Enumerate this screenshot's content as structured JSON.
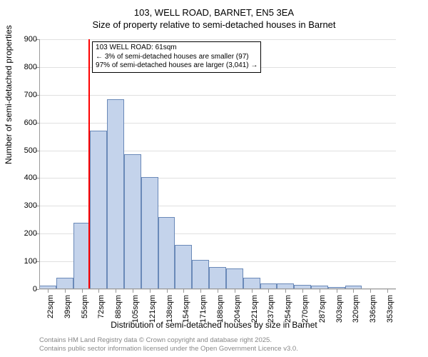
{
  "title": {
    "line1": "103, WELL ROAD, BARNET, EN5 3EA",
    "line2": "Size of property relative to semi-detached houses in Barnet"
  },
  "chart": {
    "type": "histogram",
    "ylabel": "Number of semi-detached properties",
    "xlabel": "Distribution of semi-detached houses by size in Barnet",
    "ylim": [
      0,
      900
    ],
    "ytick_step": 100,
    "yticks": [
      0,
      100,
      200,
      300,
      400,
      500,
      600,
      700,
      800,
      900
    ],
    "xticks": [
      "22sqm",
      "39sqm",
      "55sqm",
      "72sqm",
      "88sqm",
      "105sqm",
      "121sqm",
      "138sqm",
      "154sqm",
      "171sqm",
      "188sqm",
      "204sqm",
      "221sqm",
      "237sqm",
      "254sqm",
      "270sqm",
      "287sqm",
      "303sqm",
      "320sqm",
      "336sqm",
      "353sqm"
    ],
    "values": [
      12,
      40,
      240,
      570,
      685,
      485,
      405,
      260,
      160,
      105,
      80,
      75,
      40,
      20,
      20,
      15,
      12,
      8,
      14,
      0,
      0
    ],
    "bar_color": "#c4d3eb",
    "bar_border": "#6a89b8",
    "grid_color": "#e0e0e0",
    "background_color": "#ffffff",
    "axis_color": "#999999",
    "bar_width_ratio": 1.0,
    "vline": {
      "x_category_index": 2.4,
      "color": "#ff0000"
    },
    "annotation": {
      "line1": "103 WELL ROAD: 61sqm",
      "line2": "← 3% of semi-detached houses are smaller (97)",
      "line3": "97% of semi-detached houses are larger (3,041) →"
    }
  },
  "footer": {
    "line1": "Contains HM Land Registry data © Crown copyright and database right 2025.",
    "line2": "Contains public sector information licensed under the Open Government Licence v3.0."
  }
}
